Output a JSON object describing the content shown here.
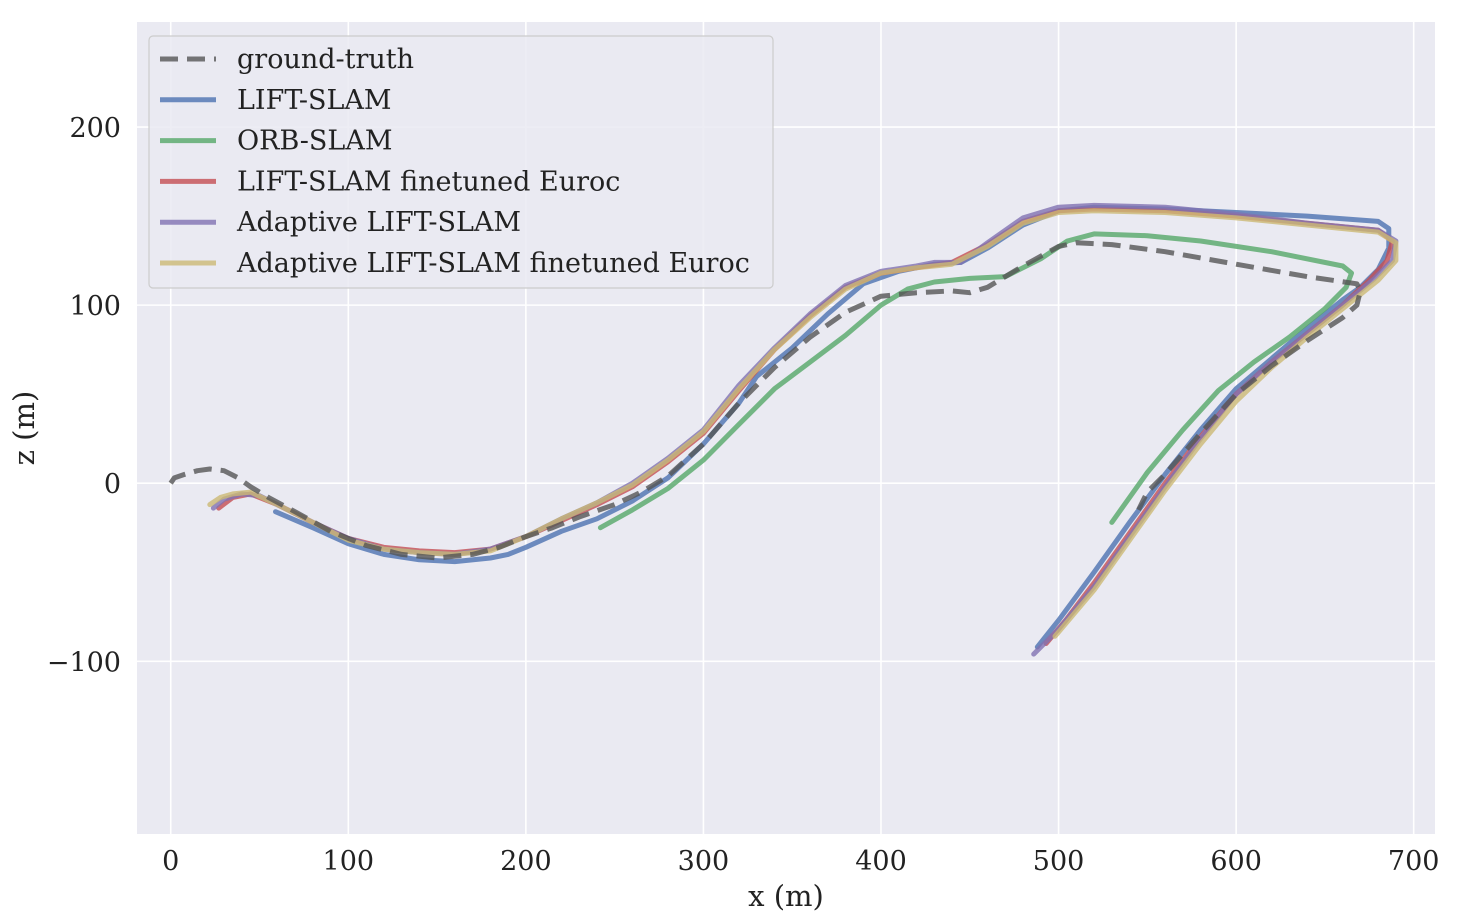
{
  "chart_data": {
    "type": "line",
    "xlabel": "x (m)",
    "ylabel": "z (m)",
    "xlim": [
      -19,
      712
    ],
    "ylim": [
      -197,
      259
    ],
    "xticks": [
      0,
      100,
      200,
      300,
      400,
      500,
      600,
      700
    ],
    "yticks": [
      -100,
      0,
      100,
      200
    ],
    "ytick_labels": [
      "−100",
      "0",
      "100",
      "200"
    ],
    "grid": true,
    "legend_position": "upper-left",
    "series": [
      {
        "name": "ground-truth",
        "color": "#555555",
        "dashed": true,
        "points": [
          [
            0,
            0
          ],
          [
            2,
            3
          ],
          [
            8,
            5
          ],
          [
            15,
            7
          ],
          [
            22,
            8
          ],
          [
            30,
            7
          ],
          [
            38,
            3
          ],
          [
            45,
            -2
          ],
          [
            55,
            -8
          ],
          [
            70,
            -16
          ],
          [
            90,
            -27
          ],
          [
            110,
            -35
          ],
          [
            130,
            -40
          ],
          [
            150,
            -42
          ],
          [
            170,
            -40
          ],
          [
            185,
            -36
          ],
          [
            200,
            -30
          ],
          [
            215,
            -25
          ],
          [
            230,
            -19
          ],
          [
            250,
            -12
          ],
          [
            265,
            -5
          ],
          [
            280,
            4
          ],
          [
            300,
            22
          ],
          [
            320,
            45
          ],
          [
            340,
            65
          ],
          [
            360,
            82
          ],
          [
            380,
            96
          ],
          [
            400,
            105
          ],
          [
            420,
            107
          ],
          [
            440,
            108
          ],
          [
            450,
            107
          ],
          [
            460,
            110
          ],
          [
            480,
            122
          ],
          [
            500,
            133
          ],
          [
            510,
            135
          ],
          [
            530,
            134
          ],
          [
            560,
            130
          ],
          [
            600,
            123
          ],
          [
            640,
            116
          ],
          [
            668,
            112
          ],
          [
            670,
            108
          ],
          [
            668,
            100
          ],
          [
            660,
            93
          ],
          [
            640,
            80
          ],
          [
            620,
            66
          ],
          [
            600,
            50
          ],
          [
            580,
            28
          ],
          [
            560,
            5
          ],
          [
            550,
            -5
          ],
          [
            545,
            -15
          ]
        ]
      },
      {
        "name": "LIFT-SLAM",
        "color": "#4c72b0",
        "dashed": false,
        "points": [
          [
            59,
            -16
          ],
          [
            80,
            -25
          ],
          [
            100,
            -34
          ],
          [
            120,
            -40
          ],
          [
            140,
            -43
          ],
          [
            160,
            -44
          ],
          [
            180,
            -42
          ],
          [
            190,
            -40
          ],
          [
            200,
            -36
          ],
          [
            220,
            -27
          ],
          [
            240,
            -20
          ],
          [
            260,
            -10
          ],
          [
            280,
            3
          ],
          [
            300,
            22
          ],
          [
            320,
            45
          ],
          [
            330,
            60
          ],
          [
            350,
            76
          ],
          [
            370,
            95
          ],
          [
            390,
            112
          ],
          [
            410,
            119
          ],
          [
            430,
            123
          ],
          [
            445,
            124
          ],
          [
            460,
            132
          ],
          [
            480,
            145
          ],
          [
            500,
            153
          ],
          [
            520,
            155
          ],
          [
            560,
            154
          ],
          [
            600,
            152
          ],
          [
            640,
            150
          ],
          [
            680,
            147
          ],
          [
            686,
            143
          ],
          [
            686,
            132
          ],
          [
            680,
            120
          ],
          [
            670,
            110
          ],
          [
            660,
            103
          ],
          [
            640,
            87
          ],
          [
            620,
            70
          ],
          [
            600,
            53
          ],
          [
            580,
            30
          ],
          [
            560,
            5
          ],
          [
            540,
            -22
          ],
          [
            520,
            -50
          ],
          [
            500,
            -77
          ],
          [
            488,
            -92
          ]
        ]
      },
      {
        "name": "ORB-SLAM",
        "color": "#55a868",
        "dashed": false,
        "points": [
          [
            242,
            -25
          ],
          [
            260,
            -15
          ],
          [
            280,
            -3
          ],
          [
            300,
            13
          ],
          [
            320,
            33
          ],
          [
            340,
            53
          ],
          [
            360,
            68
          ],
          [
            380,
            83
          ],
          [
            400,
            100
          ],
          [
            415,
            109
          ],
          [
            430,
            113
          ],
          [
            450,
            115
          ],
          [
            470,
            116
          ],
          [
            490,
            126
          ],
          [
            505,
            136
          ],
          [
            520,
            140
          ],
          [
            550,
            139
          ],
          [
            580,
            136
          ],
          [
            620,
            130
          ],
          [
            660,
            122
          ],
          [
            665,
            118
          ],
          [
            662,
            110
          ],
          [
            650,
            98
          ],
          [
            630,
            82
          ],
          [
            610,
            68
          ],
          [
            590,
            52
          ],
          [
            570,
            30
          ],
          [
            550,
            6
          ],
          [
            530,
            -22
          ]
        ]
      },
      {
        "name": "LIFT-SLAM finetuned Euroc",
        "color": "#c44e52",
        "dashed": false,
        "points": [
          [
            27,
            -14
          ],
          [
            35,
            -8
          ],
          [
            45,
            -6
          ],
          [
            60,
            -12
          ],
          [
            80,
            -22
          ],
          [
            100,
            -31
          ],
          [
            120,
            -36
          ],
          [
            140,
            -38
          ],
          [
            160,
            -39
          ],
          [
            180,
            -37
          ],
          [
            200,
            -30
          ],
          [
            220,
            -21
          ],
          [
            240,
            -12
          ],
          [
            260,
            -2
          ],
          [
            280,
            12
          ],
          [
            300,
            28
          ],
          [
            320,
            52
          ],
          [
            340,
            75
          ],
          [
            360,
            94
          ],
          [
            380,
            110
          ],
          [
            400,
            118
          ],
          [
            420,
            121
          ],
          [
            440,
            124
          ],
          [
            460,
            134
          ],
          [
            480,
            147
          ],
          [
            500,
            153
          ],
          [
            520,
            154
          ],
          [
            560,
            153
          ],
          [
            600,
            150
          ],
          [
            640,
            146
          ],
          [
            680,
            142
          ],
          [
            688,
            136
          ],
          [
            685,
            125
          ],
          [
            675,
            114
          ],
          [
            660,
            100
          ],
          [
            640,
            84
          ],
          [
            620,
            68
          ],
          [
            600,
            50
          ],
          [
            580,
            26
          ],
          [
            560,
            0
          ],
          [
            540,
            -28
          ],
          [
            520,
            -56
          ],
          [
            504,
            -77
          ],
          [
            493,
            -90
          ]
        ]
      },
      {
        "name": "Adaptive LIFT-SLAM",
        "color": "#8172b2",
        "dashed": false,
        "points": [
          [
            24,
            -14
          ],
          [
            30,
            -9
          ],
          [
            40,
            -6
          ],
          [
            50,
            -7
          ],
          [
            60,
            -12
          ],
          [
            80,
            -22
          ],
          [
            100,
            -31
          ],
          [
            120,
            -37
          ],
          [
            140,
            -39
          ],
          [
            160,
            -40
          ],
          [
            180,
            -37
          ],
          [
            200,
            -30
          ],
          [
            220,
            -20
          ],
          [
            240,
            -11
          ],
          [
            260,
            0
          ],
          [
            280,
            14
          ],
          [
            300,
            30
          ],
          [
            320,
            55
          ],
          [
            340,
            76
          ],
          [
            360,
            95
          ],
          [
            380,
            111
          ],
          [
            400,
            119
          ],
          [
            420,
            122
          ],
          [
            430,
            124
          ],
          [
            445,
            124
          ],
          [
            460,
            135
          ],
          [
            480,
            149
          ],
          [
            500,
            155
          ],
          [
            520,
            156
          ],
          [
            560,
            155
          ],
          [
            600,
            151
          ],
          [
            640,
            146
          ],
          [
            680,
            142
          ],
          [
            690,
            136
          ],
          [
            688,
            125
          ],
          [
            678,
            115
          ],
          [
            660,
            100
          ],
          [
            640,
            84
          ],
          [
            620,
            68
          ],
          [
            600,
            50
          ],
          [
            580,
            25
          ],
          [
            560,
            -2
          ],
          [
            540,
            -30
          ],
          [
            520,
            -58
          ],
          [
            500,
            -82
          ],
          [
            486,
            -96
          ]
        ]
      },
      {
        "name": "Adaptive LIFT-SLAM finetuned Euroc",
        "color": "#ccb974",
        "dashed": false,
        "points": [
          [
            22,
            -12
          ],
          [
            28,
            -8
          ],
          [
            35,
            -6
          ],
          [
            45,
            -5
          ],
          [
            60,
            -12
          ],
          [
            80,
            -22
          ],
          [
            100,
            -32
          ],
          [
            120,
            -37
          ],
          [
            140,
            -39
          ],
          [
            160,
            -40
          ],
          [
            180,
            -38
          ],
          [
            200,
            -30
          ],
          [
            220,
            -20
          ],
          [
            240,
            -11
          ],
          [
            260,
            -1
          ],
          [
            280,
            13
          ],
          [
            300,
            29
          ],
          [
            320,
            53
          ],
          [
            340,
            75
          ],
          [
            360,
            93
          ],
          [
            380,
            109
          ],
          [
            400,
            118
          ],
          [
            420,
            121
          ],
          [
            440,
            123
          ],
          [
            460,
            133
          ],
          [
            480,
            146
          ],
          [
            500,
            152
          ],
          [
            520,
            153
          ],
          [
            560,
            152
          ],
          [
            600,
            149
          ],
          [
            640,
            145
          ],
          [
            680,
            141
          ],
          [
            690,
            135
          ],
          [
            690,
            125
          ],
          [
            680,
            114
          ],
          [
            660,
            98
          ],
          [
            640,
            82
          ],
          [
            620,
            65
          ],
          [
            600,
            46
          ],
          [
            580,
            22
          ],
          [
            560,
            -4
          ],
          [
            540,
            -32
          ],
          [
            520,
            -60
          ],
          [
            498,
            -86
          ]
        ]
      }
    ]
  }
}
